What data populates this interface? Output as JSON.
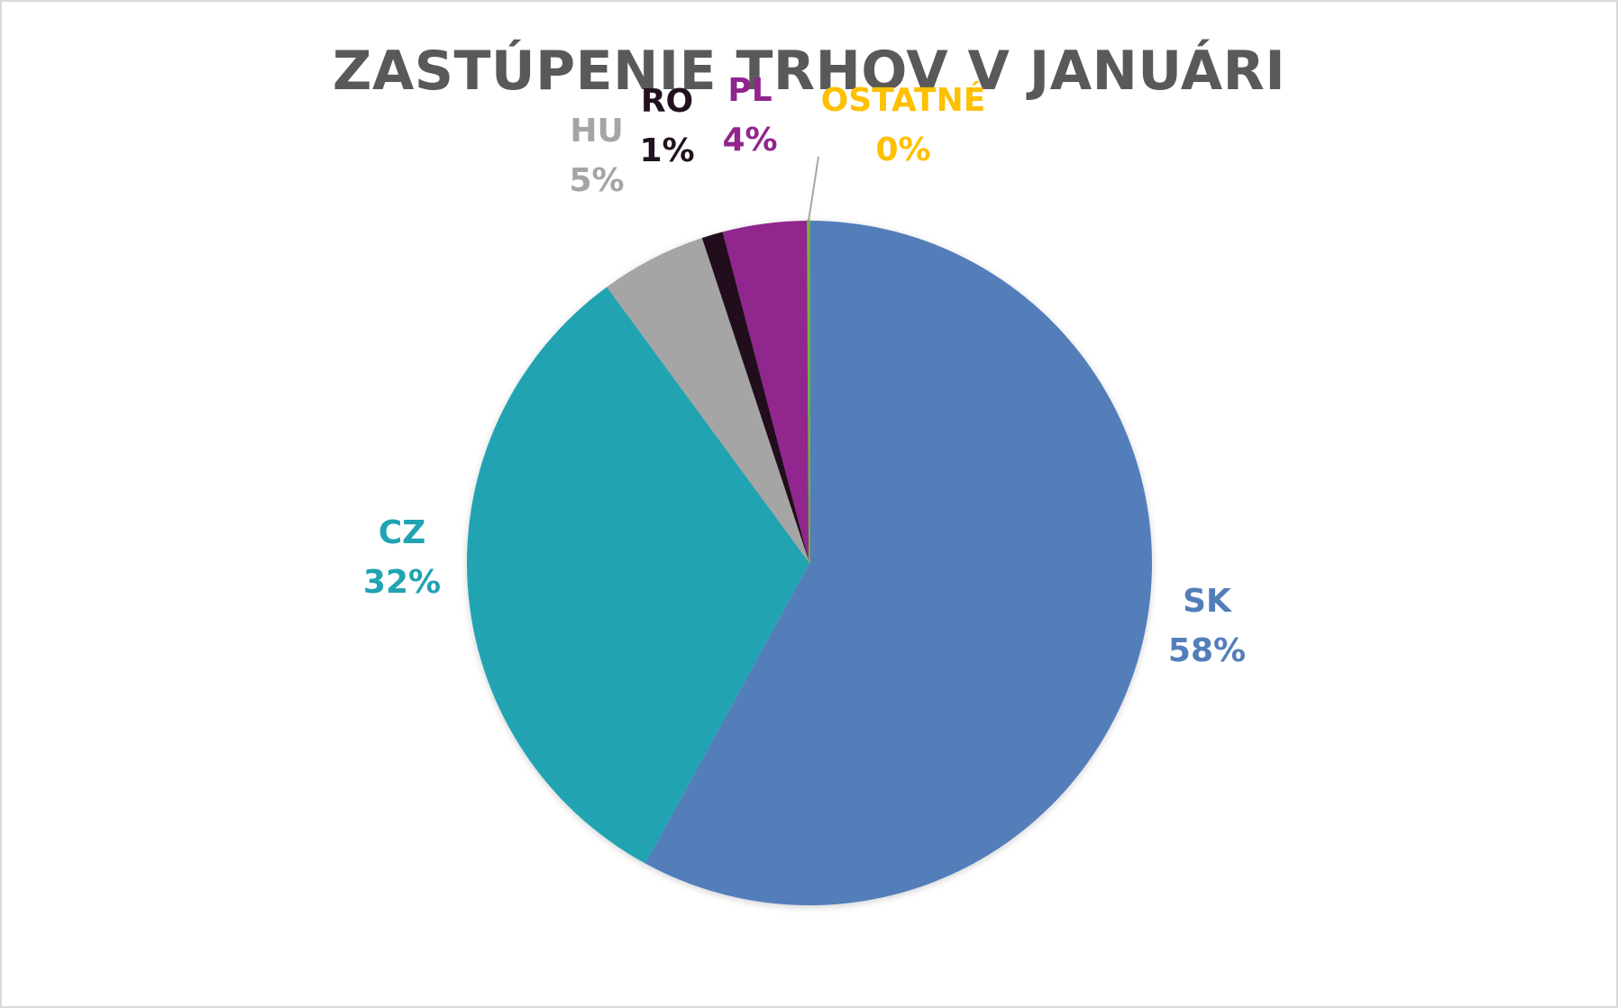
{
  "chart_data": {
    "type": "pie",
    "title": "ZASTÚPENIE TRHOV V JANUÁRI",
    "categories": [
      "SK",
      "CZ",
      "HU",
      "RO",
      "PL",
      "OSTATNÉ"
    ],
    "values": [
      58,
      32,
      5,
      1,
      4,
      0
    ],
    "labels": [
      "58%",
      "32%",
      "5%",
      "1%",
      "4%",
      "0%"
    ],
    "colors": [
      "#527EBA",
      "#20A3B2",
      "#A5A5A5",
      "#22111F",
      "#90258E",
      "#70AD47"
    ],
    "label_colors": [
      "#527EBA",
      "#20A3B2",
      "#A5A5A5",
      "#22111F",
      "#90258E",
      "#FFC000"
    ],
    "legend": "none"
  }
}
